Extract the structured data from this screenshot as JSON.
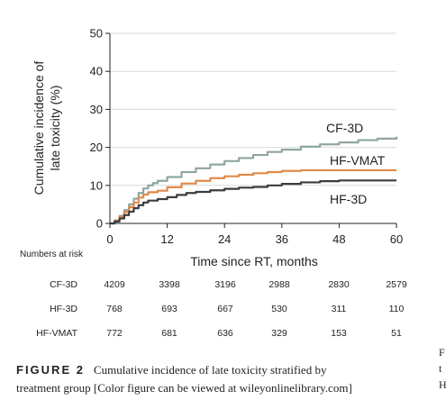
{
  "chart_data": {
    "type": "line",
    "ylabel_line1": "Cumulative incidence of",
    "ylabel_line2": "late toxicity (%)",
    "xlabel": "Time since RT, months",
    "xlim": [
      0,
      60
    ],
    "ylim": [
      0,
      50
    ],
    "x_ticks": [
      0,
      12,
      24,
      36,
      48,
      60
    ],
    "y_ticks": [
      0,
      10,
      20,
      30,
      40,
      50
    ],
    "grid": true,
    "series": [
      {
        "name": "CF-3D",
        "color": "#8fa6a3",
        "points": [
          [
            0,
            0
          ],
          [
            1,
            0.8
          ],
          [
            2,
            2
          ],
          [
            3,
            3.5
          ],
          [
            4,
            5
          ],
          [
            5,
            6.5
          ],
          [
            6,
            8
          ],
          [
            7,
            9.2
          ],
          [
            8,
            10
          ],
          [
            9,
            10.6
          ],
          [
            10,
            11.2
          ],
          [
            12,
            12.2
          ],
          [
            15,
            13.5
          ],
          [
            18,
            14.5
          ],
          [
            21,
            15.5
          ],
          [
            24,
            16.4
          ],
          [
            27,
            17.2
          ],
          [
            30,
            18
          ],
          [
            33,
            18.8
          ],
          [
            36,
            19.4
          ],
          [
            40,
            20.2
          ],
          [
            44,
            20.8
          ],
          [
            48,
            21.3
          ],
          [
            52,
            21.9
          ],
          [
            56,
            22.3
          ],
          [
            60,
            22.8
          ]
        ]
      },
      {
        "name": "HF-VMAT",
        "color": "#e08a4a",
        "points": [
          [
            0,
            0
          ],
          [
            1,
            0.7
          ],
          [
            2,
            1.8
          ],
          [
            3,
            3
          ],
          [
            4,
            4.3
          ],
          [
            5,
            5.5
          ],
          [
            6,
            6.8
          ],
          [
            7,
            7.6
          ],
          [
            8,
            8.2
          ],
          [
            10,
            8.6
          ],
          [
            12,
            9.5
          ],
          [
            15,
            10.5
          ],
          [
            18,
            11.2
          ],
          [
            21,
            11.9
          ],
          [
            24,
            12.4
          ],
          [
            27,
            12.8
          ],
          [
            30,
            13.2
          ],
          [
            33,
            13.5
          ],
          [
            36,
            13.8
          ],
          [
            40,
            14
          ],
          [
            44,
            14
          ],
          [
            48,
            14
          ],
          [
            60,
            14
          ]
        ]
      },
      {
        "name": "HF-3D",
        "color": "#3a3d40",
        "points": [
          [
            0,
            0
          ],
          [
            1,
            0.5
          ],
          [
            2,
            1.3
          ],
          [
            3,
            2.2
          ],
          [
            4,
            3.1
          ],
          [
            5,
            4
          ],
          [
            6,
            4.8
          ],
          [
            7,
            5.5
          ],
          [
            8,
            6
          ],
          [
            10,
            6.4
          ],
          [
            12,
            6.9
          ],
          [
            14,
            7.5
          ],
          [
            16,
            8
          ],
          [
            18,
            8.3
          ],
          [
            21,
            8.7
          ],
          [
            24,
            9.1
          ],
          [
            27,
            9.4
          ],
          [
            30,
            9.6
          ],
          [
            33,
            10
          ],
          [
            36,
            10.4
          ],
          [
            40,
            10.8
          ],
          [
            44,
            11.1
          ],
          [
            48,
            11.3
          ],
          [
            60,
            11.3
          ]
        ]
      }
    ],
    "annotations": [
      "CF-3D",
      "HF-VMAT",
      "HF-3D"
    ]
  },
  "risk_table": {
    "title": "Numbers at risk",
    "rows": [
      {
        "label": "CF-3D",
        "values": [
          "4209",
          "3398",
          "3196",
          "2988",
          "2830",
          "2579"
        ]
      },
      {
        "label": "HF-3D",
        "values": [
          "768",
          "693",
          "667",
          "530",
          "311",
          "110"
        ]
      },
      {
        "label": "HF-VMAT",
        "values": [
          "772",
          "681",
          "636",
          "329",
          "153",
          "51"
        ]
      }
    ]
  },
  "caption": {
    "label": "FIGURE 2",
    "line1": "Cumulative incidence of late toxicity stratified by",
    "line2": "treatment group [Color figure can be viewed at wileyonlinelibrary.com]"
  },
  "side_letters": [
    "F",
    "t",
    "H"
  ]
}
